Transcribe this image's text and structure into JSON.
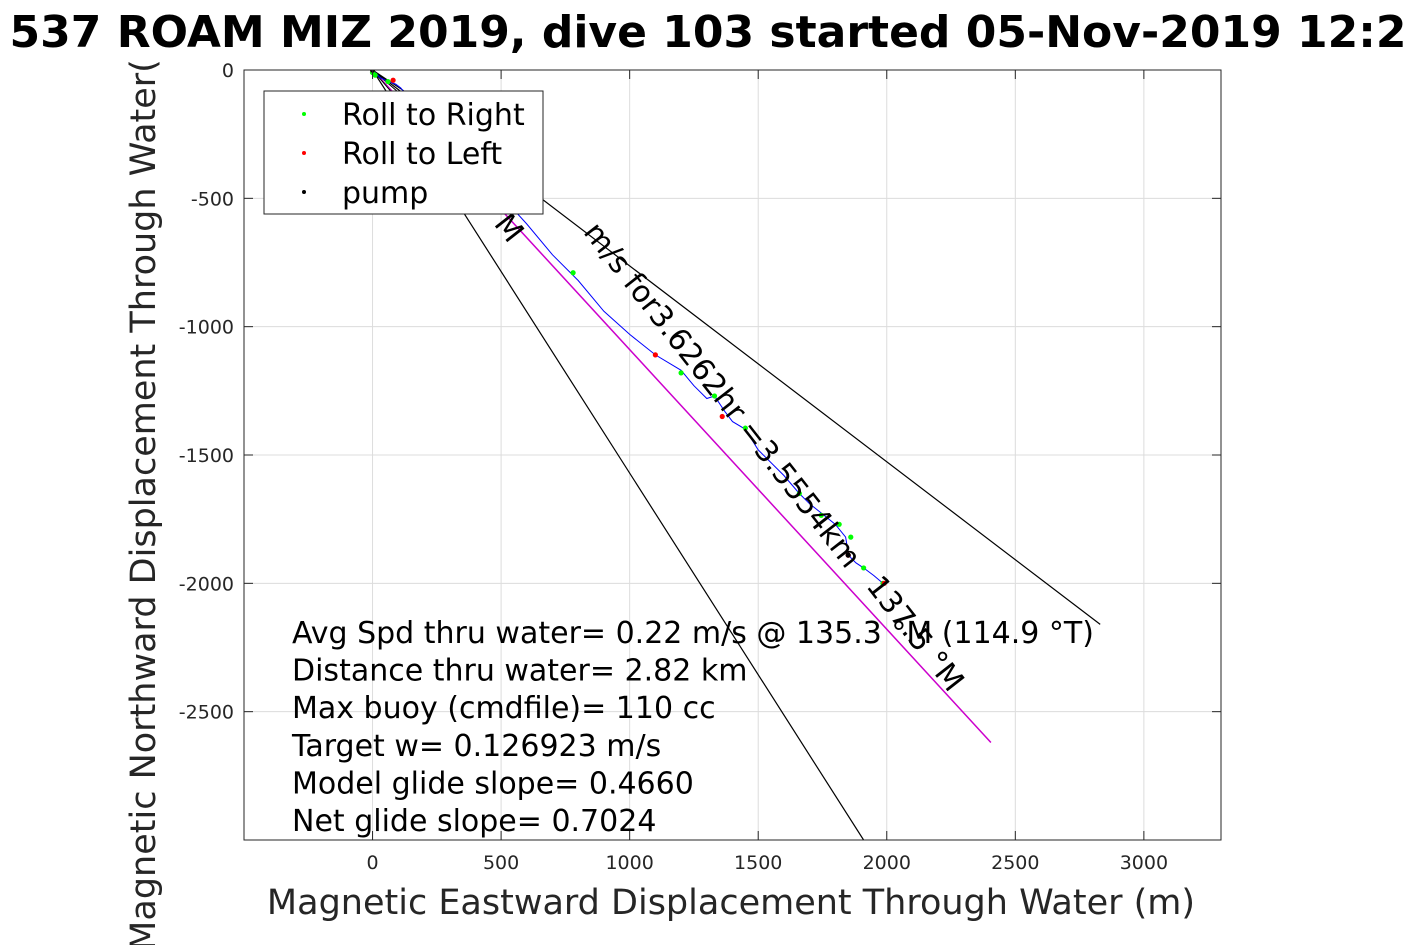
{
  "chart_data": {
    "type": "line",
    "title": "537 ROAM MIZ 2019, dive 103 started 05-Nov-2019 12:2",
    "xlabel": "Magnetic Eastward Displacement Through Water (m)",
    "ylabel": "Magnetic Northward Displacement Through Water(",
    "xlim": [
      -500,
      3300
    ],
    "ylim": [
      -3000,
      0
    ],
    "xticks": [
      "0",
      "500",
      "1000",
      "1500",
      "2000",
      "2500",
      "3000"
    ],
    "yticks": [
      "0",
      "-500",
      "-1000",
      "-1500",
      "-2000",
      "-2500"
    ],
    "grid": true,
    "legend_position": "top-left",
    "legend": [
      {
        "label": "Roll to Right",
        "color": "#00ff00"
      },
      {
        "label": "Roll to Left",
        "color": "#ff0000"
      },
      {
        "label": "pump",
        "color": "#000000"
      }
    ],
    "track": {
      "color": "#0000ff",
      "x": [
        0,
        30,
        60,
        90,
        110,
        200,
        300,
        400,
        500,
        600,
        700,
        800,
        900,
        1000,
        1100,
        1200,
        1250,
        1300,
        1330,
        1370,
        1400,
        1450,
        1500,
        1600,
        1660,
        1700,
        1750,
        1800,
        1840,
        1850,
        1860,
        1880,
        1910,
        1950,
        1985
      ],
      "y": [
        0,
        -30,
        -45,
        -55,
        -70,
        -180,
        -290,
        -390,
        -490,
        -600,
        -720,
        -820,
        -940,
        -1030,
        -1110,
        -1170,
        -1230,
        -1280,
        -1270,
        -1330,
        -1370,
        -1400,
        -1480,
        -1580,
        -1650,
        -1690,
        -1730,
        -1770,
        -1820,
        -1880,
        -1900,
        -1920,
        -1940,
        -1970,
        -2000
      ]
    },
    "roll_right": {
      "x": [
        0,
        10,
        60,
        780,
        1200,
        1330,
        1450,
        1660,
        1745,
        1815,
        1860,
        1910,
        1985
      ],
      "y": [
        -10,
        -20,
        -45,
        -790,
        -1180,
        -1270,
        -1395,
        -1650,
        -1735,
        -1770,
        -1820,
        -1940,
        -2000
      ]
    },
    "roll_left": {
      "x": [
        0,
        80,
        1100,
        1360,
        1850,
        1990
      ],
      "y": [
        0,
        -40,
        -1110,
        -1350,
        -1890,
        -2000
      ]
    },
    "pump": {
      "x": [
        0,
        1850
      ],
      "y": [
        0,
        -1890
      ]
    },
    "model_line": {
      "color": "#cc00cc",
      "x": [
        0,
        2405
      ],
      "y": [
        0,
        -2620
      ]
    },
    "ref_lines": [
      {
        "color": "#000000",
        "x": [
          0,
          2830
        ],
        "y": [
          0,
          -2160
        ]
      },
      {
        "color": "#000000",
        "x": [
          0,
          1910
        ],
        "y": [
          0,
          -3000
        ]
      }
    ],
    "labels": [
      {
        "text": "m/s for3.6262hr =3.5554km",
        "x": 1330,
        "y": -1290
      },
      {
        "text": "M",
        "x": 500,
        "y": -640
      },
      {
        "text": "137.5 °M",
        "x": 2080,
        "y": -2220
      }
    ],
    "annotations": [
      "Avg Spd thru water=  0.22 m/s @ 135.3 °M (114.9 °T)",
      "Distance thru water=  2.82 km",
      "Max buoy (cmdfile)= 110 cc",
      "Target w= 0.126923 m/s",
      "Model glide slope= 0.4660",
      "Net glide slope= 0.7024"
    ]
  }
}
